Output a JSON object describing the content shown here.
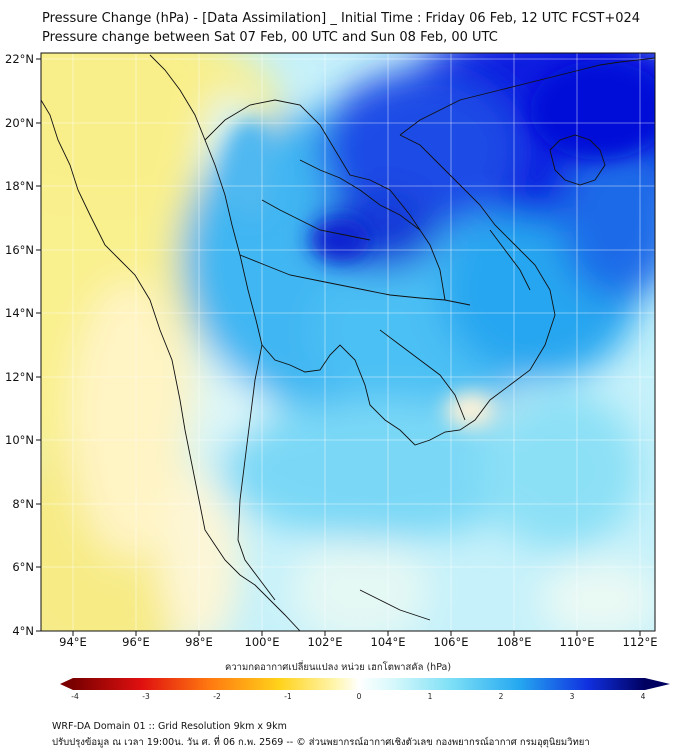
{
  "header": {
    "title_line1": "Pressure Change (hPa) - [Data Assimilation] _ Initial Time : Friday 06 Feb, 12 UTC FCST+024",
    "title_line2": "Pressure change between Sat 07 Feb, 00 UTC and Sun 08 Feb, 00 UTC"
  },
  "map": {
    "lon_labels": [
      "94°E",
      "96°E",
      "98°E",
      "100°E",
      "102°E",
      "104°E",
      "106°E",
      "108°E",
      "110°E",
      "112°E"
    ],
    "lat_labels": [
      "22°N",
      "20°N",
      "18°N",
      "16°N",
      "14°N",
      "12°N",
      "10°N",
      "8°N",
      "6°N",
      "4°N"
    ],
    "lon_range": [
      93,
      112.5
    ],
    "lat_range": [
      4,
      22.2
    ],
    "field": "pressure change (hPa)",
    "colors": {
      "strong_rise": "#0a14e0",
      "moderate_rise": "#2aa8f0",
      "weak_rise": "#c8f4fa",
      "near_zero": "#fff6d8",
      "weak_fall": "#f9ef8a",
      "boundary": "#111111"
    }
  },
  "colorbar": {
    "title": "ความกดอากาศเปลี่ยนแปลง หน่วย เฮกโตพาสคัล (hPa)",
    "tick_labels": [
      "-4",
      "-3",
      "-2",
      "-1",
      "0",
      "1",
      "2",
      "3",
      "4"
    ],
    "range": [
      -4,
      4
    ],
    "extend": "both"
  },
  "footer": {
    "line1": "WRF-DA Domain 01 :: Grid Resolution 9km x 9km",
    "line2": "ปรับปรุงข้อมูล ณ เวลา 19:00น. วัน ศ. ที่ 06 ก.พ. 2569 -- © ส่วนพยากรณ์อากาศเชิงตัวเลข กองพยากรณ์อากาศ กรมอุตุนิยมวิทยา"
  }
}
